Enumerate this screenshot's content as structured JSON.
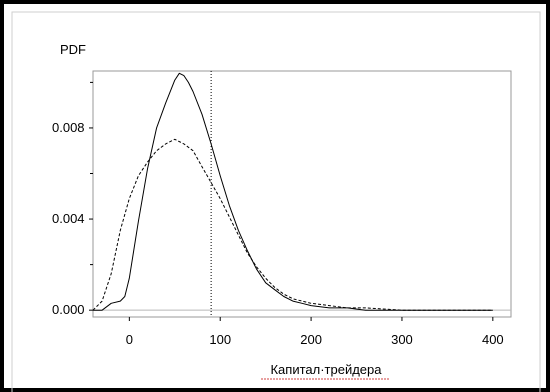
{
  "chart_data": {
    "type": "line",
    "title": "",
    "ylabel": "PDF",
    "xlabel": "Капитал·трейдера",
    "xlim": [
      -40,
      420
    ],
    "ylim": [
      -0.0003,
      0.0105
    ],
    "x_ticks": [
      0,
      100,
      200,
      300,
      400
    ],
    "x_tick_labels": [
      "0",
      "100",
      "200",
      "300",
      "400"
    ],
    "y_ticks": [
      0.0,
      0.004,
      0.008
    ],
    "y_tick_labels": [
      "0.000",
      "0.004",
      "0.008"
    ],
    "grid": false,
    "reference_line": {
      "x": 90,
      "style": "dotted"
    },
    "series": [
      {
        "style": "solid",
        "x": [
          -40,
          -30,
          -20,
          -10,
          -5,
          0,
          10,
          20,
          30,
          40,
          50,
          55,
          60,
          65,
          70,
          80,
          90,
          100,
          110,
          120,
          130,
          140,
          150,
          160,
          170,
          180,
          190,
          200,
          220,
          240,
          260,
          280,
          300,
          330,
          360,
          400
        ],
        "y": [
          0.0,
          0.0,
          0.0003,
          0.0004,
          0.0006,
          0.0014,
          0.0039,
          0.0062,
          0.008,
          0.0091,
          0.0101,
          0.0104,
          0.0103,
          0.01,
          0.0096,
          0.0086,
          0.0073,
          0.0059,
          0.0046,
          0.0035,
          0.0026,
          0.0018,
          0.0012,
          0.0009,
          0.0006,
          0.0004,
          0.0003,
          0.0002,
          0.0001,
          0.0001,
          0.0,
          0.0,
          0.0,
          0.0,
          0.0,
          0.0
        ]
      },
      {
        "style": "dashed",
        "x": [
          -40,
          -30,
          -20,
          -10,
          0,
          10,
          20,
          30,
          40,
          50,
          60,
          70,
          80,
          90,
          100,
          110,
          120,
          130,
          140,
          150,
          160,
          170,
          180,
          200,
          220,
          240,
          260,
          300,
          340,
          400
        ],
        "y": [
          0.0,
          0.0004,
          0.0016,
          0.0035,
          0.0049,
          0.0059,
          0.0065,
          0.007,
          0.0073,
          0.0075,
          0.0073,
          0.007,
          0.0063,
          0.0056,
          0.0049,
          0.0041,
          0.0033,
          0.0025,
          0.0019,
          0.0014,
          0.001,
          0.0007,
          0.0005,
          0.0003,
          0.0002,
          0.0001,
          0.0001,
          0.0,
          0.0,
          0.0
        ]
      }
    ]
  }
}
